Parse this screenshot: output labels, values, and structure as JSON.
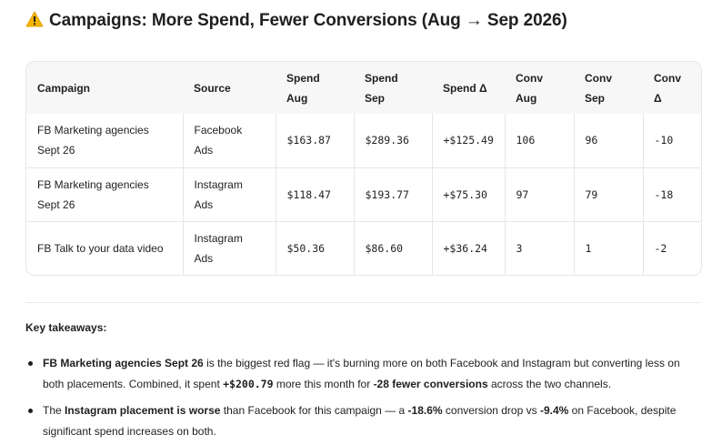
{
  "title": "Campaigns: More Spend, Fewer Conversions (Aug → Sep 2026)",
  "table": {
    "headers": [
      [
        "Campaign"
      ],
      [
        "Source"
      ],
      [
        "Spend",
        "Aug"
      ],
      [
        "Spend",
        "Sep"
      ],
      [
        "Spend Δ"
      ],
      [
        "Conv",
        "Aug"
      ],
      [
        "Conv",
        "Sep"
      ],
      [
        "Conv",
        "Δ"
      ]
    ],
    "rows": [
      {
        "campaign": [
          "FB Marketing agencies",
          "Sept 26"
        ],
        "source": [
          "Facebook",
          "Ads"
        ],
        "spend_aug": "$163.87",
        "spend_sep": "$289.36",
        "spend_delta": "+$125.49",
        "conv_aug": "106",
        "conv_sep": "96",
        "conv_delta": "-10"
      },
      {
        "campaign": [
          "FB Marketing agencies",
          "Sept 26"
        ],
        "source": [
          "Instagram",
          "Ads"
        ],
        "spend_aug": "$118.47",
        "spend_sep": "$193.77",
        "spend_delta": "+$75.30",
        "conv_aug": "97",
        "conv_sep": "79",
        "conv_delta": "-18"
      },
      {
        "campaign": [
          "FB Talk to your data video"
        ],
        "source": [
          "Instagram",
          "Ads"
        ],
        "spend_aug": "$50.36",
        "spend_sep": "$86.60",
        "spend_delta": "+$36.24",
        "conv_aug": "3",
        "conv_sep": "1",
        "conv_delta": "-2"
      }
    ]
  },
  "takeaways": {
    "heading": "Key takeaways:",
    "bullet1": {
      "b1": "FB Marketing agencies Sept 26",
      "t1": " is the biggest red flag — it's burning more on both Facebook and Instagram but converting less on both placements. Combined, it spent ",
      "b2": "+$200.79",
      "t2": " more this month for ",
      "b3": "-28 fewer conversions",
      "t3": " across the two channels."
    },
    "bullet2": {
      "t0": "The ",
      "b1": "Instagram placement is worse",
      "t1": " than Facebook for this campaign — a ",
      "b2": "-18.6%",
      "t2": " conversion drop vs ",
      "b3": "-9.4%",
      "t3": " on Facebook, despite significant spend increases on both."
    }
  },
  "colors": {
    "warning_fill": "#f5b400",
    "header_bg": "#f7f7f7",
    "border": "#e6e6e6"
  },
  "icons": {
    "title_icon": "warning-icon"
  }
}
